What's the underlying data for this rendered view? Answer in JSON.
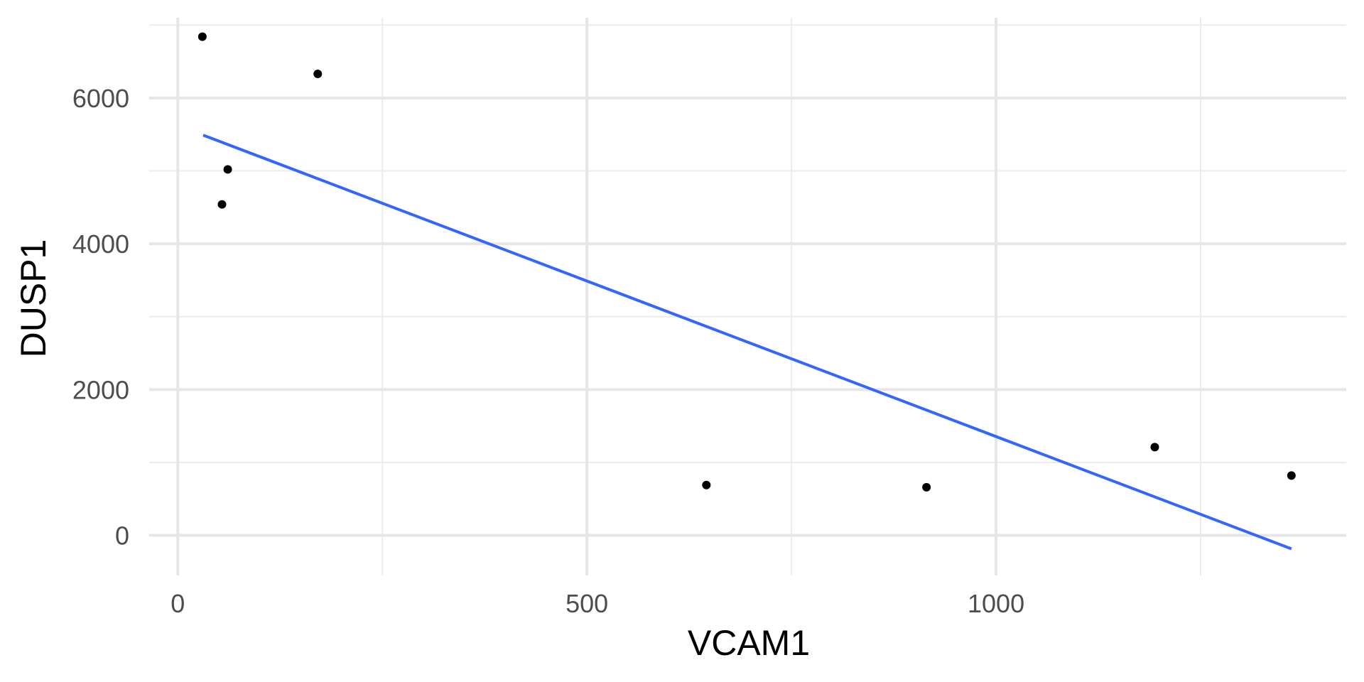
{
  "chart_data": {
    "type": "scatter",
    "title": "",
    "xlabel": "VCAM1",
    "ylabel": "DUSP1",
    "xlim": [
      -35,
      1428
    ],
    "ylim": [
      -550,
      7100
    ],
    "x_ticks": [
      0,
      500,
      1000
    ],
    "x_minor_ticks": [
      250,
      750,
      1250
    ],
    "y_ticks": [
      0,
      2000,
      4000,
      6000
    ],
    "y_minor_ticks": [
      1000,
      3000,
      5000,
      7000
    ],
    "grid": true,
    "legend": "none",
    "points": [
      {
        "x": 30,
        "y": 6840
      },
      {
        "x": 171,
        "y": 6330
      },
      {
        "x": 61,
        "y": 5020
      },
      {
        "x": 54,
        "y": 4540
      },
      {
        "x": 646,
        "y": 690
      },
      {
        "x": 915,
        "y": 660
      },
      {
        "x": 1194,
        "y": 1210
      },
      {
        "x": 1361,
        "y": 820
      }
    ],
    "trend_line": {
      "x": [
        31,
        1361
      ],
      "y": [
        5490,
        -185
      ]
    },
    "colors": {
      "points": "#000000",
      "trend_line": "#3366FF",
      "grid_major": "#e6e6e6",
      "grid_minor": "#ececec"
    }
  }
}
